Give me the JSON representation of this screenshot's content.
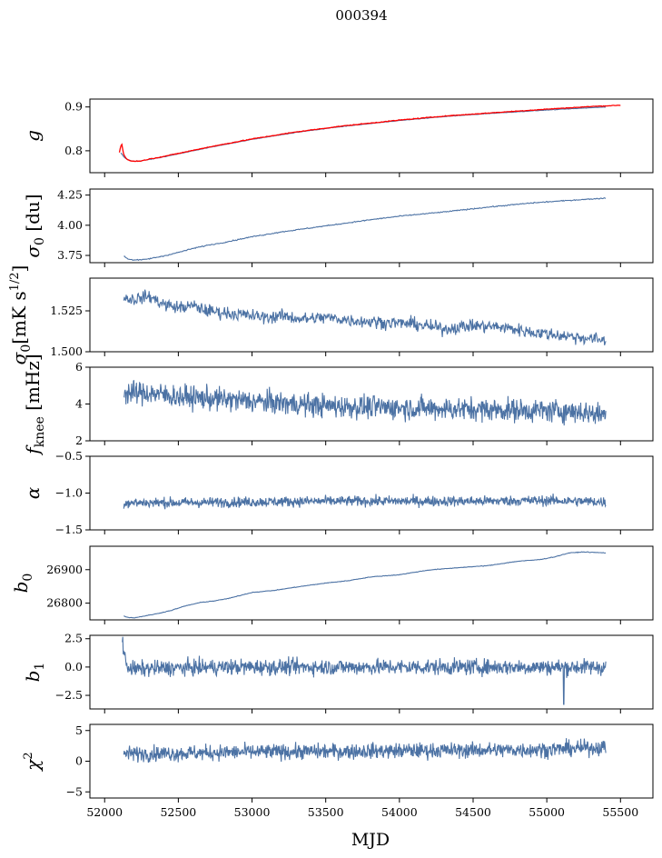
{
  "chart_data": {
    "type": "line",
    "title": "000394",
    "xlabel": "MJD",
    "xlim": [
      51900,
      55720
    ],
    "xticks": [
      52000,
      52500,
      53000,
      53500,
      54000,
      54500,
      55000,
      55500
    ],
    "xticklabels": [
      "52000",
      "52500",
      "53000",
      "53500",
      "54000",
      "54500",
      "55000",
      "55500"
    ],
    "line_color": "#4c72a4",
    "overlay_color": "#ff0000",
    "panels": [
      {
        "ylabel_parts": [
          {
            "t": "g",
            "italic": true
          }
        ],
        "ylim": [
          0.75,
          0.918
        ],
        "yticks": [
          0.8,
          0.9
        ],
        "yticklabels": [
          "0.8",
          "0.9"
        ],
        "series": [
          {
            "name": "",
            "x": [
              52110,
              52130,
              52150,
              52170,
              52200,
              52250,
              52300,
              52400,
              52500,
              52700,
              53000,
              53300,
              53600,
              54000,
              54300,
              54600,
              55000,
              55400
            ],
            "y": [
              0.795,
              0.786,
              0.781,
              0.778,
              0.776,
              0.777,
              0.78,
              0.786,
              0.793,
              0.807,
              0.826,
              0.842,
              0.855,
              0.869,
              0.878,
              0.885,
              0.893,
              0.9
            ]
          }
        ],
        "overlay": {
          "x": [
            52100,
            52115,
            52130,
            52150,
            52175,
            52200,
            52250,
            52300,
            52400,
            52500,
            52700,
            53000,
            53300,
            53600,
            54000,
            54300,
            54600,
            55000,
            55300,
            55500
          ],
          "y": [
            0.797,
            0.818,
            0.79,
            0.781,
            0.777,
            0.776,
            0.777,
            0.781,
            0.787,
            0.794,
            0.808,
            0.827,
            0.843,
            0.856,
            0.87,
            0.879,
            0.886,
            0.895,
            0.901,
            0.904
          ]
        }
      },
      {
        "ylabel_parts": [
          {
            "t": "σ",
            "italic": true
          },
          {
            "t": "0",
            "sub": true
          },
          {
            "t": " [du]"
          }
        ],
        "ylim": [
          3.69,
          4.3
        ],
        "yticks": [
          3.75,
          4.0,
          4.25
        ],
        "yticklabels": [
          "3.75",
          "4.00",
          "4.25"
        ],
        "series": [
          {
            "name": "",
            "x": [
              52130,
              52160,
              52200,
              52250,
              52300,
              52400,
              52500,
              52600,
              52700,
              52800,
              53000,
              53200,
              53500,
              53800,
              54000,
              54300,
              54600,
              54900,
              55200,
              55400
            ],
            "y": [
              3.745,
              3.72,
              3.712,
              3.713,
              3.722,
              3.745,
              3.775,
              3.808,
              3.835,
              3.855,
              3.905,
              3.945,
              3.995,
              4.045,
              4.075,
              4.11,
              4.15,
              4.185,
              4.21,
              4.225
            ]
          }
        ]
      },
      {
        "ylabel_parts": [
          {
            "t": "σ",
            "italic": true
          },
          {
            "t": "0",
            "sub": true
          },
          {
            "t": "[mK s"
          },
          {
            "t": "1/2",
            "sup": true
          },
          {
            "t": "]"
          }
        ],
        "ylim": [
          1.5,
          1.545
        ],
        "yticks": [
          1.5,
          1.525
        ],
        "yticklabels": [
          "1.500",
          "1.525"
        ],
        "series": [
          {
            "name": "",
            "x": [
              52130,
              52200,
              52300,
              52400,
              52500,
              52600,
              52700,
              52800,
              53000,
              53100,
              53200,
              53350,
              53500,
              53700,
              53900,
              54100,
              54300,
              54500,
              54700,
              54900,
              55100,
              55300,
              55400
            ],
            "y": [
              1.533,
              1.532,
              1.534,
              1.529,
              1.527,
              1.528,
              1.525,
              1.524,
              1.522,
              1.521,
              1.522,
              1.52,
              1.521,
              1.519,
              1.518,
              1.517,
              1.514,
              1.516,
              1.515,
              1.512,
              1.51,
              1.508,
              1.507
            ]
          }
        ]
      },
      {
        "ylabel_parts": [
          {
            "t": "f",
            "italic": true
          },
          {
            "t": "knee",
            "sub": true
          },
          {
            "t": " [mHz]"
          }
        ],
        "ylim": [
          2,
          6
        ],
        "yticks": [
          2,
          4,
          6
        ],
        "yticklabels": [
          "2",
          "4",
          "6"
        ],
        "series": [
          {
            "name": "",
            "x": [
              52130,
              52300,
              52500,
              52700,
              52900,
              53100,
              53300,
              53500,
              53700,
              54000,
              54300,
              54600,
              54900,
              55200,
              55400
            ],
            "y": [
              4.6,
              4.6,
              4.4,
              4.3,
              4.2,
              4.1,
              4.0,
              3.9,
              3.85,
              3.8,
              3.75,
              3.7,
              3.65,
              3.6,
              3.4
            ]
          }
        ]
      },
      {
        "ylabel_parts": [
          {
            "t": "α",
            "italic": true
          }
        ],
        "ylim": [
          -1.5,
          -0.5
        ],
        "yticks": [
          -1.5,
          -1.0,
          -0.5
        ],
        "yticklabels": [
          "−1.5",
          "−1.0",
          "−0.5"
        ],
        "series": [
          {
            "name": "",
            "x": [
              52130,
              52500,
              53000,
              53500,
              54000,
              54500,
              55000,
              55400
            ],
            "y": [
              -1.13,
              -1.13,
              -1.12,
              -1.11,
              -1.11,
              -1.11,
              -1.1,
              -1.12
            ]
          }
        ]
      },
      {
        "ylabel_parts": [
          {
            "t": "b",
            "italic": true
          },
          {
            "t": "0",
            "sub": true
          }
        ],
        "ylim": [
          26750,
          26970
        ],
        "yticks": [
          26800,
          26900
        ],
        "yticklabels": [
          "26800",
          "26900"
        ],
        "series": [
          {
            "name": "",
            "x": [
              52130,
              52150,
              52200,
              52250,
              52350,
              52450,
              52550,
              52650,
              52750,
              52850,
              53000,
              53150,
              53300,
              53500,
              53650,
              53800,
              54000,
              54200,
              54400,
              54600,
              54800,
              54950,
              55050,
              55150,
              55250,
              55400
            ],
            "y": [
              26762,
              26758,
              26756,
              26760,
              26768,
              26778,
              26792,
              26802,
              26807,
              26815,
              26832,
              26838,
              26848,
              26860,
              26867,
              26878,
              26885,
              26899,
              26906,
              26912,
              26925,
              26930,
              26938,
              26950,
              26953,
              26950
            ]
          }
        ]
      },
      {
        "ylabel_parts": [
          {
            "t": "b",
            "italic": true
          },
          {
            "t": "1",
            "sub": true
          }
        ],
        "ylim": [
          -3.7,
          2.8
        ],
        "yticks": [
          -2.5,
          0.0,
          2.5
        ],
        "yticklabels": [
          "−2.5",
          "0.0",
          "2.5"
        ],
        "series": [
          {
            "name": "",
            "x": [
              52120,
              52135,
              52160,
              52200,
              52400,
              52800,
              53500,
              54500,
              55000,
              55400
            ],
            "y": [
              2.5,
              0.8,
              0.0,
              -0.2,
              -0.1,
              0.0,
              0.0,
              0.0,
              0.0,
              0.0
            ]
          }
        ]
      },
      {
        "ylabel_parts": [
          {
            "t": "χ",
            "italic": true
          },
          {
            "t": "2",
            "sup": true
          }
        ],
        "ylim": [
          -6,
          6
        ],
        "yticks": [
          -5,
          0,
          5
        ],
        "yticklabels": [
          "−5",
          "0",
          "5"
        ],
        "series": [
          {
            "name": "",
            "x": [
              52130,
              52500,
              53000,
              53500,
              54000,
              54500,
              55000,
              55400
            ],
            "y": [
              1.2,
              1.3,
              1.5,
              1.6,
              1.7,
              1.8,
              1.9,
              2.3
            ]
          }
        ]
      }
    ]
  }
}
